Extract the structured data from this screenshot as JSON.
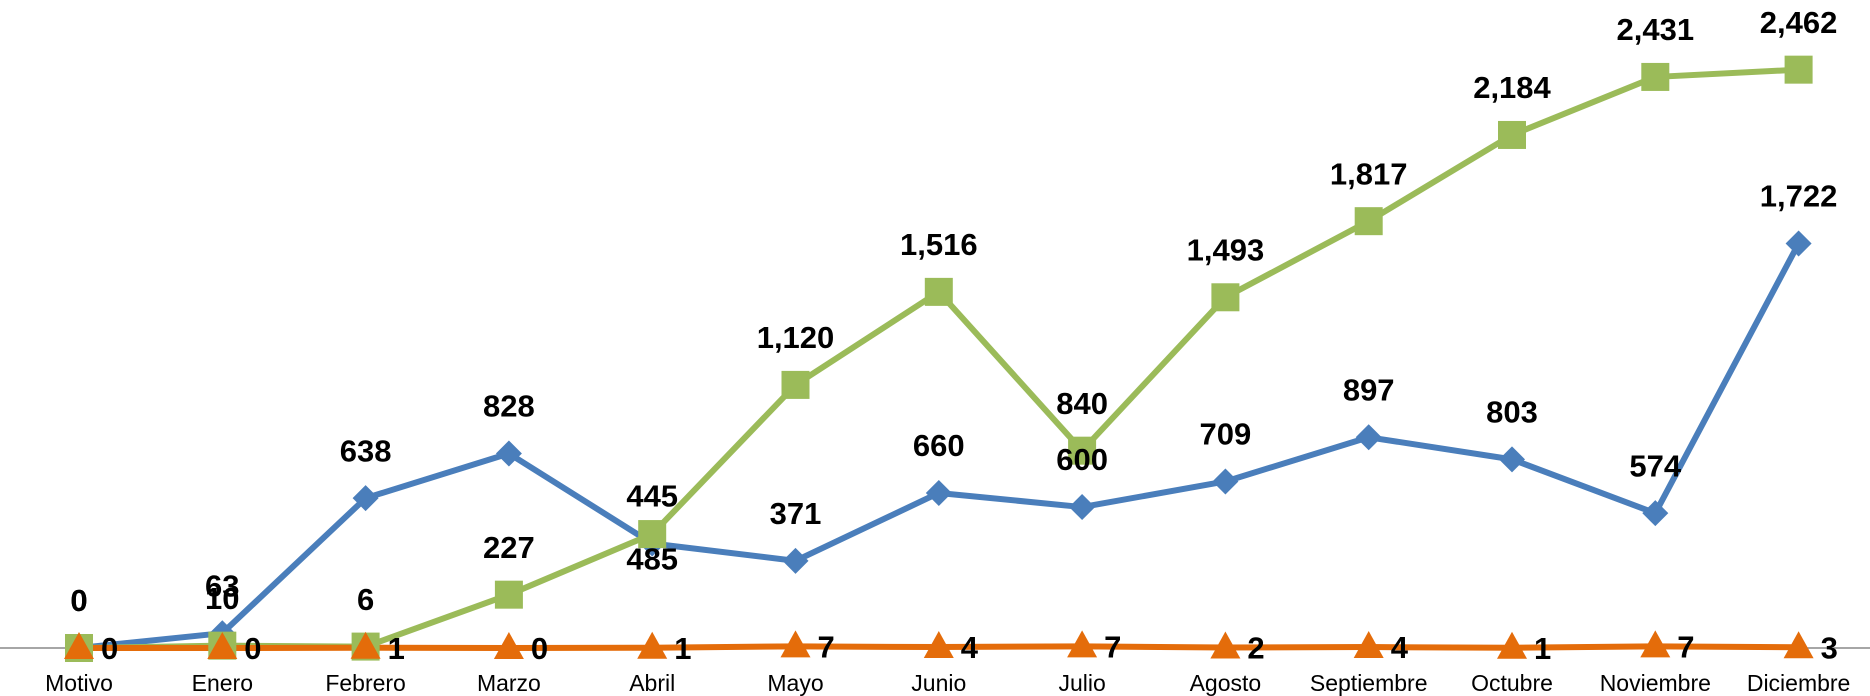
{
  "chart_data": {
    "type": "line",
    "categories": [
      "Motivo",
      "Enero",
      "Febrero",
      "Marzo",
      "Abril",
      "Mayo",
      "Junio",
      "Julio",
      "Agosto",
      "Septiembre",
      "Octubre",
      "Noviembre",
      "Diciembre"
    ],
    "series": [
      {
        "color": "#4a7ebb",
        "marker": "diamond",
        "values": [
          0,
          63,
          638,
          828,
          445,
          371,
          660,
          600,
          709,
          897,
          803,
          574,
          1722
        ],
        "value_labels": [
          "0",
          "63",
          "638",
          "828",
          "445",
          "371",
          "660",
          "600",
          "709",
          "897",
          "803",
          "574",
          "1,722"
        ]
      },
      {
        "color": "#9bbb59",
        "marker": "square",
        "values": [
          0,
          10,
          6,
          227,
          485,
          1120,
          1516,
          840,
          1493,
          1817,
          2184,
          2431,
          2462
        ],
        "value_labels": [
          "0",
          "10",
          "6",
          "227",
          "485",
          "1,120",
          "1,516",
          "840",
          "1,493",
          "1,817",
          "2,184",
          "2,431",
          "2,462"
        ]
      },
      {
        "color": "#e46c0a",
        "marker": "triangle",
        "values": [
          0,
          0,
          1,
          0,
          1,
          7,
          4,
          7,
          2,
          4,
          1,
          7,
          3
        ]
      }
    ],
    "ylim": [
      0,
      2750
    ],
    "grid": false
  }
}
